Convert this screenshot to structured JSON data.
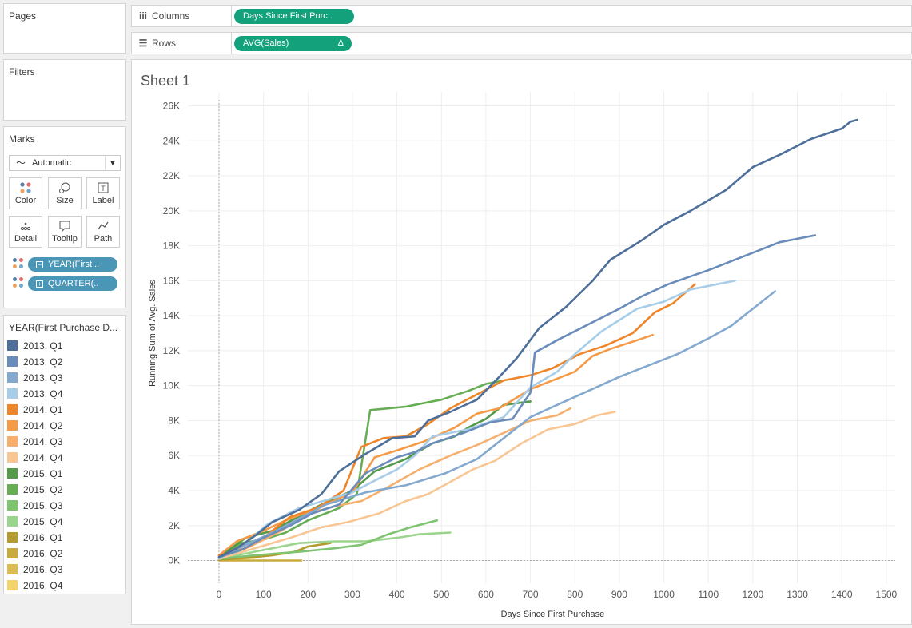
{
  "left_panels": {
    "pages_title": "Pages",
    "filters_title": "Filters",
    "marks": {
      "title": "Marks",
      "mark_type": "Automatic",
      "buttons": [
        {
          "label": "Color",
          "icon": "color-dots-icon"
        },
        {
          "label": "Size",
          "icon": "size-icon"
        },
        {
          "label": "Label",
          "icon": "label-icon"
        },
        {
          "label": "Detail",
          "icon": "detail-icon"
        },
        {
          "label": "Tooltip",
          "icon": "tooltip-icon"
        },
        {
          "label": "Path",
          "icon": "path-icon"
        }
      ],
      "pills": [
        {
          "label": "YEAR(First ..",
          "toggle": "⊟"
        },
        {
          "label": "QUARTER(..",
          "toggle": "⊞"
        }
      ]
    },
    "legend": {
      "title": "YEAR(First Purchase D...",
      "items": [
        {
          "label": "2013, Q1",
          "color": "#4e6f9a"
        },
        {
          "label": "2013, Q2",
          "color": "#6a8cba"
        },
        {
          "label": "2013, Q3",
          "color": "#84a9cf"
        },
        {
          "label": "2013, Q4",
          "color": "#a7cde8"
        },
        {
          "label": "2014, Q1",
          "color": "#ee8629"
        },
        {
          "label": "2014, Q2",
          "color": "#f59b48"
        },
        {
          "label": "2014, Q3",
          "color": "#f6b06e"
        },
        {
          "label": "2014, Q4",
          "color": "#f8c693"
        },
        {
          "label": "2015, Q1",
          "color": "#55994a"
        },
        {
          "label": "2015, Q2",
          "color": "#66ad54"
        },
        {
          "label": "2015, Q3",
          "color": "#7ec470"
        },
        {
          "label": "2015, Q4",
          "color": "#9bd48c"
        },
        {
          "label": "2016, Q1",
          "color": "#b39b30"
        },
        {
          "label": "2016, Q2",
          "color": "#c9ab3d"
        },
        {
          "label": "2016, Q3",
          "color": "#dbbd50"
        },
        {
          "label": "2016, Q4",
          "color": "#f2d46b"
        }
      ]
    }
  },
  "shelves": {
    "columns_label": "Columns",
    "columns_pill": "Days Since First Purc..",
    "rows_label": "Rows",
    "rows_pill": "AVG(Sales)",
    "rows_pill_delta": "Δ"
  },
  "sheet_title": "Sheet 1",
  "chart_data": {
    "type": "line",
    "title": "",
    "xlabel": "Days Since First Purchase",
    "ylabel": "Running Sum of Avg. Sales",
    "xlim": [
      -70,
      1520
    ],
    "ylim": [
      -1300,
      26800
    ],
    "x_ticks": [
      0,
      100,
      200,
      300,
      400,
      500,
      600,
      700,
      800,
      900,
      1000,
      1100,
      1200,
      1300,
      1400,
      1500
    ],
    "y_ticks": [
      0,
      2000,
      4000,
      6000,
      8000,
      10000,
      12000,
      14000,
      16000,
      18000,
      20000,
      22000,
      24000,
      26000
    ],
    "y_tick_labels": [
      "0K",
      "2K",
      "4K",
      "6K",
      "8K",
      "10K",
      "12K",
      "14K",
      "16K",
      "18K",
      "20K",
      "22K",
      "24K",
      "26K"
    ],
    "grid": true,
    "series": [
      {
        "name": "2013, Q1",
        "points": [
          [
            0,
            200
          ],
          [
            40,
            700
          ],
          [
            80,
            1400
          ],
          [
            120,
            2200
          ],
          [
            180,
            2900
          ],
          [
            230,
            3800
          ],
          [
            270,
            5100
          ],
          [
            330,
            6100
          ],
          [
            390,
            7000
          ],
          [
            440,
            7100
          ],
          [
            470,
            8000
          ],
          [
            520,
            8500
          ],
          [
            580,
            9200
          ],
          [
            630,
            10500
          ],
          [
            670,
            11600
          ],
          [
            720,
            13300
          ],
          [
            780,
            14500
          ],
          [
            840,
            16000
          ],
          [
            880,
            17200
          ],
          [
            950,
            18300
          ],
          [
            1000,
            19200
          ],
          [
            1060,
            20000
          ],
          [
            1140,
            21200
          ],
          [
            1200,
            22500
          ],
          [
            1260,
            23200
          ],
          [
            1330,
            24100
          ],
          [
            1400,
            24700
          ],
          [
            1420,
            25100
          ],
          [
            1435,
            25200
          ]
        ]
      },
      {
        "name": "2013, Q2",
        "points": [
          [
            0,
            200
          ],
          [
            50,
            600
          ],
          [
            100,
            1300
          ],
          [
            160,
            2000
          ],
          [
            210,
            2700
          ],
          [
            270,
            3200
          ],
          [
            330,
            5000
          ],
          [
            400,
            5900
          ],
          [
            440,
            6200
          ],
          [
            480,
            6700
          ],
          [
            550,
            7300
          ],
          [
            610,
            7900
          ],
          [
            660,
            8100
          ],
          [
            700,
            9600
          ],
          [
            710,
            11900
          ],
          [
            760,
            12600
          ],
          [
            830,
            13500
          ],
          [
            900,
            14400
          ],
          [
            950,
            15100
          ],
          [
            1010,
            15800
          ],
          [
            1100,
            16600
          ],
          [
            1180,
            17400
          ],
          [
            1260,
            18200
          ],
          [
            1340,
            18600
          ]
        ]
      },
      {
        "name": "2013, Q3",
        "points": [
          [
            0,
            150
          ],
          [
            60,
            900
          ],
          [
            120,
            1600
          ],
          [
            180,
            2400
          ],
          [
            240,
            3200
          ],
          [
            330,
            3900
          ],
          [
            420,
            4300
          ],
          [
            510,
            5000
          ],
          [
            580,
            5800
          ],
          [
            630,
            6800
          ],
          [
            700,
            8200
          ],
          [
            760,
            8900
          ],
          [
            830,
            9700
          ],
          [
            900,
            10500
          ],
          [
            960,
            11100
          ],
          [
            1030,
            11800
          ],
          [
            1100,
            12700
          ],
          [
            1150,
            13400
          ],
          [
            1200,
            14400
          ],
          [
            1250,
            15400
          ]
        ]
      },
      {
        "name": "2013, Q4",
        "points": [
          [
            0,
            100
          ],
          [
            60,
            1000
          ],
          [
            110,
            2100
          ],
          [
            180,
            3000
          ],
          [
            260,
            3600
          ],
          [
            300,
            3900
          ],
          [
            360,
            4700
          ],
          [
            400,
            5200
          ],
          [
            440,
            6000
          ],
          [
            480,
            7100
          ],
          [
            560,
            7500
          ],
          [
            640,
            8200
          ],
          [
            700,
            9900
          ],
          [
            760,
            10800
          ],
          [
            800,
            11800
          ],
          [
            860,
            13100
          ],
          [
            940,
            14400
          ],
          [
            1000,
            14800
          ],
          [
            1060,
            15500
          ],
          [
            1120,
            15800
          ],
          [
            1160,
            16000
          ]
        ]
      },
      {
        "name": "2014, Q1",
        "points": [
          [
            0,
            300
          ],
          [
            60,
            700
          ],
          [
            110,
            1500
          ],
          [
            160,
            2500
          ],
          [
            220,
            3000
          ],
          [
            280,
            4000
          ],
          [
            320,
            6500
          ],
          [
            370,
            7000
          ],
          [
            420,
            7100
          ],
          [
            470,
            7800
          ],
          [
            520,
            8700
          ],
          [
            580,
            9500
          ],
          [
            640,
            10300
          ],
          [
            700,
            10600
          ],
          [
            750,
            11000
          ],
          [
            810,
            11800
          ],
          [
            870,
            12300
          ],
          [
            930,
            13000
          ],
          [
            980,
            14200
          ],
          [
            1020,
            14700
          ],
          [
            1070,
            15800
          ]
        ]
      },
      {
        "name": "2014, Q2",
        "points": [
          [
            0,
            300
          ],
          [
            40,
            1100
          ],
          [
            100,
            1700
          ],
          [
            150,
            2300
          ],
          [
            230,
            3100
          ],
          [
            300,
            3900
          ],
          [
            350,
            5900
          ],
          [
            400,
            6300
          ],
          [
            460,
            6800
          ],
          [
            530,
            7600
          ],
          [
            580,
            8400
          ],
          [
            630,
            8700
          ],
          [
            700,
            9800
          ],
          [
            750,
            10300
          ],
          [
            800,
            10800
          ],
          [
            840,
            11700
          ],
          [
            880,
            12100
          ],
          [
            940,
            12600
          ],
          [
            975,
            12900
          ]
        ]
      },
      {
        "name": "2014, Q3",
        "points": [
          [
            0,
            200
          ],
          [
            70,
            800
          ],
          [
            140,
            1700
          ],
          [
            200,
            2700
          ],
          [
            260,
            3100
          ],
          [
            320,
            3400
          ],
          [
            380,
            4200
          ],
          [
            450,
            5200
          ],
          [
            520,
            6000
          ],
          [
            580,
            6600
          ],
          [
            640,
            7300
          ],
          [
            700,
            8000
          ],
          [
            760,
            8300
          ],
          [
            790,
            8700
          ]
        ]
      },
      {
        "name": "2014, Q4",
        "points": [
          [
            0,
            100
          ],
          [
            80,
            700
          ],
          [
            160,
            1300
          ],
          [
            230,
            1900
          ],
          [
            290,
            2200
          ],
          [
            360,
            2700
          ],
          [
            420,
            3400
          ],
          [
            470,
            3800
          ],
          [
            520,
            4500
          ],
          [
            570,
            5200
          ],
          [
            620,
            5700
          ],
          [
            680,
            6700
          ],
          [
            740,
            7500
          ],
          [
            800,
            7800
          ],
          [
            850,
            8300
          ],
          [
            890,
            8500
          ]
        ]
      },
      {
        "name": "2015, Q1",
        "points": [
          [
            0,
            200
          ],
          [
            60,
            1300
          ],
          [
            120,
            1700
          ],
          [
            170,
            2400
          ],
          [
            230,
            3200
          ],
          [
            300,
            4000
          ],
          [
            350,
            5100
          ],
          [
            420,
            5800
          ],
          [
            480,
            6700
          ],
          [
            530,
            7100
          ],
          [
            560,
            7600
          ],
          [
            600,
            8100
          ],
          [
            640,
            8900
          ],
          [
            700,
            9100
          ]
        ]
      },
      {
        "name": "2015, Q2",
        "points": [
          [
            0,
            200
          ],
          [
            50,
            1000
          ],
          [
            100,
            1200
          ],
          [
            150,
            1600
          ],
          [
            200,
            2300
          ],
          [
            270,
            3000
          ],
          [
            310,
            3800
          ],
          [
            340,
            8600
          ],
          [
            420,
            8800
          ],
          [
            500,
            9200
          ],
          [
            560,
            9700
          ],
          [
            600,
            10100
          ],
          [
            640,
            10300
          ]
        ]
      },
      {
        "name": "2015, Q3",
        "points": [
          [
            0,
            100
          ],
          [
            80,
            300
          ],
          [
            180,
            500
          ],
          [
            260,
            700
          ],
          [
            320,
            900
          ],
          [
            380,
            1500
          ],
          [
            430,
            1900
          ],
          [
            490,
            2300
          ]
        ]
      },
      {
        "name": "2015, Q4",
        "points": [
          [
            0,
            100
          ],
          [
            100,
            600
          ],
          [
            180,
            1000
          ],
          [
            260,
            1100
          ],
          [
            330,
            1100
          ],
          [
            400,
            1300
          ],
          [
            450,
            1500
          ],
          [
            520,
            1600
          ]
        ]
      },
      {
        "name": "2016, Q1",
        "points": [
          [
            0,
            50
          ],
          [
            60,
            150
          ],
          [
            120,
            300
          ],
          [
            170,
            500
          ],
          [
            200,
            800
          ],
          [
            250,
            1000
          ]
        ]
      },
      {
        "name": "2016, Q2",
        "points": [
          [
            0,
            0
          ],
          [
            60,
            0
          ],
          [
            120,
            0
          ],
          [
            185,
            0
          ]
        ]
      },
      {
        "name": "2016, Q3",
        "points": [
          [
            0,
            100
          ],
          [
            50,
            200
          ],
          [
            100,
            300
          ],
          [
            150,
            400
          ]
        ]
      },
      {
        "name": "2016, Q4",
        "points": [
          [
            0,
            50
          ],
          [
            40,
            100
          ],
          [
            80,
            150
          ]
        ]
      }
    ]
  }
}
